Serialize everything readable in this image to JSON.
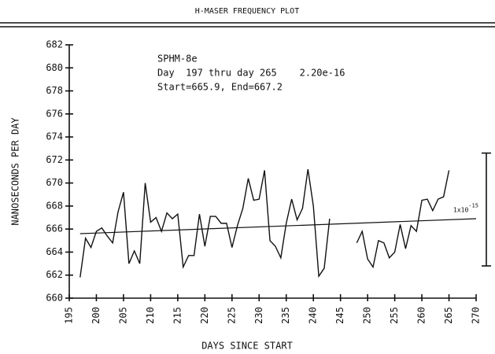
{
  "chart_data": {
    "type": "line",
    "title": "H-MASER FREQUENCY PLOT",
    "xlabel": "DAYS SINCE START",
    "ylabel": "NANOSECONDS PER DAY",
    "annotations": [
      "SPHM-8e",
      "Day  197 thru day 265    2.20e-16",
      "Start=665.9, End=667.2"
    ],
    "scale_label": "1x10",
    "scale_exponent": "-15",
    "scale_range": [
      662.8,
      672.6
    ],
    "x": [
      197,
      198,
      199,
      200,
      201,
      202,
      203,
      204,
      205,
      206,
      207,
      208,
      209,
      210,
      211,
      212,
      213,
      214,
      215,
      216,
      217,
      218,
      219,
      220,
      221,
      222,
      223,
      224,
      225,
      226,
      227,
      228,
      229,
      230,
      231,
      232,
      233,
      234,
      235,
      236,
      237,
      238,
      239,
      240,
      241,
      242,
      243,
      244,
      245,
      246,
      247,
      248,
      249,
      250,
      251,
      252,
      253,
      254,
      255,
      256,
      257,
      258,
      259,
      260,
      261,
      262,
      263,
      264,
      265
    ],
    "series": [
      {
        "name": "frequency",
        "color": "#111111",
        "values": [
          661.8,
          665.2,
          664.4,
          665.8,
          666.1,
          665.4,
          664.8,
          667.5,
          669.2,
          663.0,
          664.1,
          663.0,
          670.0,
          666.6,
          667.0,
          665.8,
          667.4,
          666.9,
          667.3,
          662.7,
          663.7,
          663.7,
          667.3,
          664.5,
          667.1,
          667.1,
          666.5,
          666.5,
          664.4,
          666.3,
          667.8,
          670.4,
          668.5,
          668.6,
          671.1,
          665.0,
          664.5,
          663.5,
          666.5,
          668.6,
          666.8,
          667.8,
          671.2,
          668.0,
          661.9,
          662.6,
          666.9,
          null,
          null,
          null,
          null,
          664.8,
          665.8,
          663.4,
          662.7,
          665.0,
          664.8,
          663.5,
          664.0,
          666.4,
          664.3,
          666.3,
          665.8,
          668.5,
          668.6,
          667.6,
          668.6,
          668.8,
          671.1
        ]
      }
    ],
    "trend": {
      "x": [
        197,
        270
      ],
      "values": [
        665.6,
        666.9
      ]
    },
    "xlim": [
      195,
      270
    ],
    "xticks": [
      195,
      200,
      205,
      210,
      215,
      220,
      225,
      230,
      235,
      240,
      245,
      250,
      255,
      260,
      265,
      270
    ],
    "ylim": [
      660,
      682
    ],
    "yticks": [
      660,
      662,
      664,
      666,
      668,
      670,
      672,
      674,
      676,
      678,
      680,
      682
    ]
  }
}
